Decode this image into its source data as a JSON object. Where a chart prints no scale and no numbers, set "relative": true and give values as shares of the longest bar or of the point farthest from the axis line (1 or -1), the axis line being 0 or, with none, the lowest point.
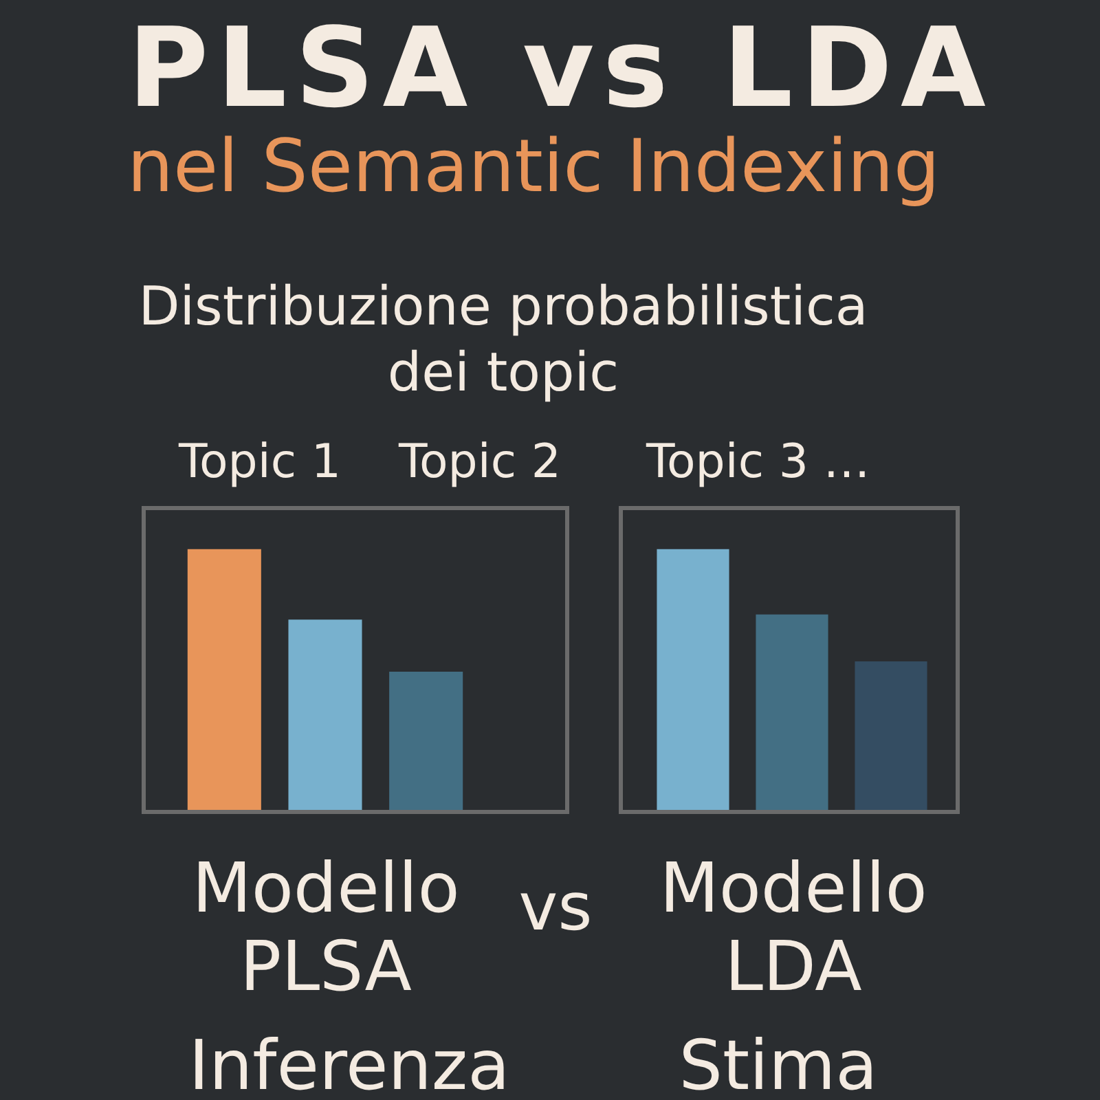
{
  "chart_data": [
    {
      "type": "other",
      "title": "PLSA vs LDA",
      "subtitle": "nel Semantic Indexing",
      "annotations": [
        "Distribuzione probabilistica dei topic",
        "Topic 1",
        "Topic 2",
        "Topic 3 …"
      ]
    },
    {
      "type": "bar",
      "relative": true,
      "categories": [
        null,
        null,
        null
      ],
      "values": [
        1,
        0.73,
        0.53
      ],
      "colors": [
        "#e8955a",
        "#78b1ce",
        "#436f84"
      ],
      "xlabel": "Modello PLSA",
      "annotations": [
        "Inferenza"
      ]
    },
    {
      "type": "other",
      "annotations": [
        "vs"
      ]
    },
    {
      "type": "bar",
      "relative": true,
      "categories": [
        null,
        null,
        null
      ],
      "values": [
        1,
        0.75,
        0.57
      ],
      "colors": [
        "#78b1ce",
        "#436f84",
        "#344d62"
      ],
      "xlabel": "Modello LDA",
      "annotations": [
        "Stima"
      ]
    }
  ]
}
